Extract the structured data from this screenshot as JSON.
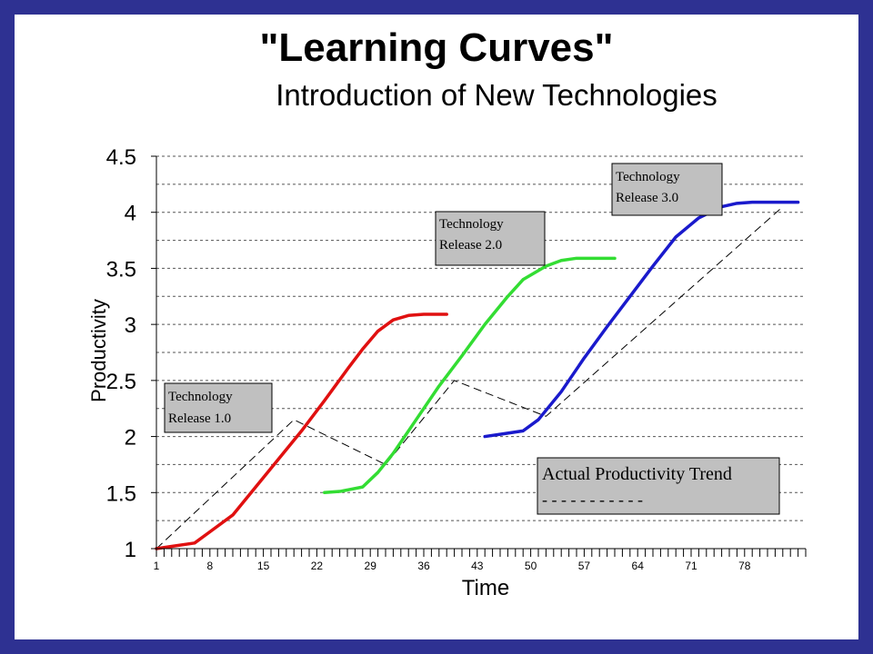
{
  "slide": {
    "title": "\"Learning Curves\"",
    "subtitle": "Introduction of New Technologies"
  },
  "colors": {
    "frame": "#2e3192",
    "release1": "#e01010",
    "release2": "#33dd33",
    "release3": "#1a1acc",
    "annotation_box": "#c0c0c0"
  },
  "chart_data": {
    "type": "line",
    "xlabel": "Time",
    "ylabel": "Productivity",
    "xlim": [
      1,
      86
    ],
    "ylim": [
      1,
      4.5
    ],
    "y_ticks": [
      "1",
      "1.5",
      "2",
      "2.5",
      "3",
      "3.5",
      "4",
      "4.5"
    ],
    "x_tick_labels": [
      "1",
      "8",
      "15",
      "22",
      "29",
      "36",
      "43",
      "50",
      "57",
      "64",
      "71",
      "78"
    ],
    "grid": "horizontal dashed",
    "series": [
      {
        "key": "release1",
        "x": [
          1,
          3,
          6,
          8,
          11,
          14,
          17,
          20,
          23,
          26,
          28,
          30,
          32,
          34,
          36,
          39
        ],
        "y": [
          1.0,
          1.02,
          1.05,
          1.15,
          1.3,
          1.55,
          1.8,
          2.05,
          2.32,
          2.6,
          2.78,
          2.94,
          3.04,
          3.08,
          3.09,
          3.09
        ]
      },
      {
        "key": "release2",
        "x": [
          23,
          25,
          28,
          30,
          32,
          35,
          38,
          41,
          44,
          47,
          49,
          52,
          54,
          56,
          58,
          61
        ],
        "y": [
          1.5,
          1.51,
          1.55,
          1.68,
          1.85,
          2.15,
          2.45,
          2.72,
          3.0,
          3.25,
          3.4,
          3.52,
          3.57,
          3.59,
          3.59,
          3.59
        ]
      },
      {
        "key": "release3",
        "x": [
          44,
          46,
          49,
          51,
          54,
          57,
          60,
          63,
          66,
          69,
          72,
          75,
          77,
          79,
          82,
          85
        ],
        "y": [
          2.0,
          2.02,
          2.05,
          2.15,
          2.4,
          2.7,
          2.98,
          3.25,
          3.52,
          3.78,
          3.95,
          4.05,
          4.08,
          4.09,
          4.09,
          4.09
        ]
      }
    ],
    "trend_line": [
      {
        "x": 1,
        "y": 1.0
      },
      {
        "x": 19,
        "y": 2.15
      },
      {
        "x": 31,
        "y": 1.75
      },
      {
        "x": 40,
        "y": 2.5
      },
      {
        "x": 52,
        "y": 2.18
      },
      {
        "x": 83,
        "y": 4.05
      }
    ],
    "annotations": [
      {
        "id": "release1",
        "line1": "Technology",
        "line2": "Release 1.0"
      },
      {
        "id": "release2",
        "line1": "Technology",
        "line2": "Release 2.0"
      },
      {
        "id": "release3",
        "line1": "Technology",
        "line2": "Release 3.0"
      }
    ],
    "trend_legend": {
      "label": "Actual Productivity Trend",
      "dashes": "- - - - - - - - - - -"
    }
  }
}
